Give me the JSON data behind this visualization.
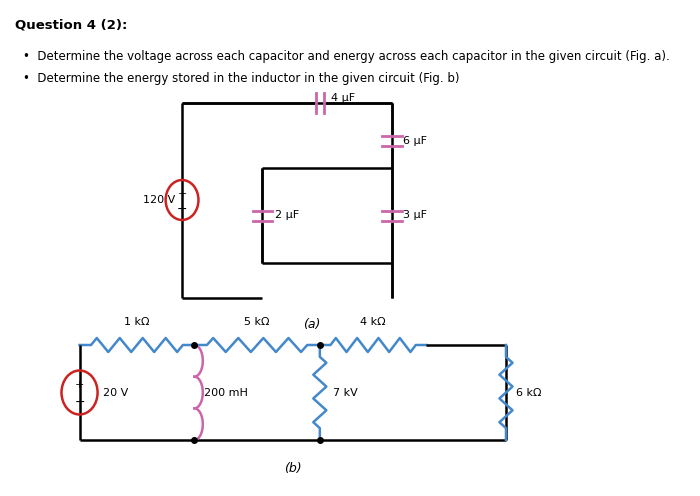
{
  "title": "Question 4 (2):",
  "bullet1": "Determine the voltage across each capacitor and energy across each capacitor in the given circuit (Fig. a).",
  "bullet2": "Determine the energy stored in the inductor in the given circuit (Fig. b)",
  "fig_a_label": "(a)",
  "fig_b_label": "(b)",
  "bg_color": "#ffffff",
  "wire_color": "#000000",
  "cap_color": "#cc66aa",
  "res_color": "#4488cc",
  "ind_color": "#cc66aa",
  "src_color": "#cc2222",
  "text_color": "#000000",
  "dot_color": "#000000"
}
